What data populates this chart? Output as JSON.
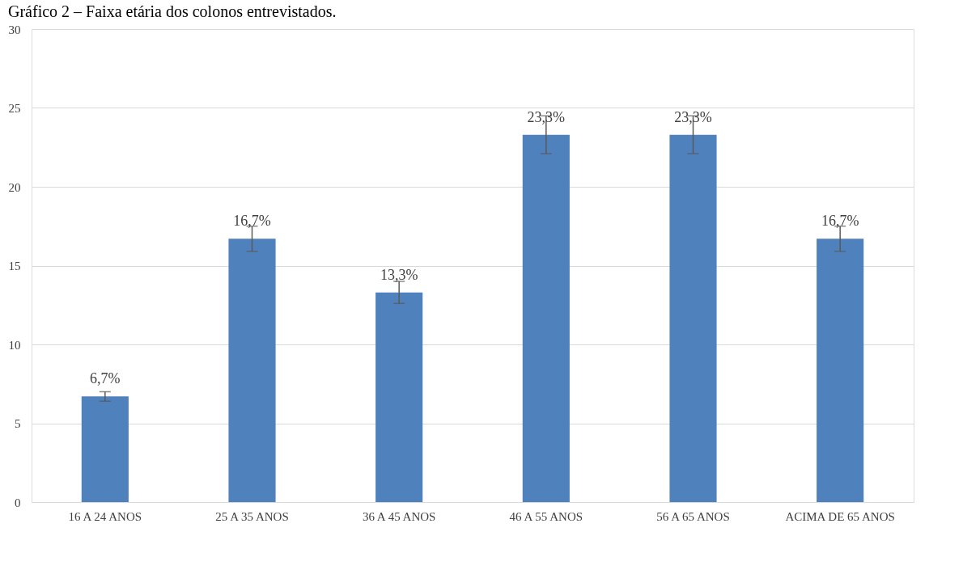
{
  "chart_data": {
    "type": "bar",
    "title": "Gráfico 2 – Faixa etária dos colonos entrevistados.",
    "categories": [
      "16 A 24 ANOS",
      "25 A 35 ANOS",
      "36 A 45 ANOS",
      "46 A 55 ANOS",
      "56 A 65 ANOS",
      "ACIMA DE 65 ANOS"
    ],
    "values": [
      6.7,
      16.7,
      13.3,
      23.3,
      23.3,
      16.7
    ],
    "errors": [
      0.3,
      0.8,
      0.7,
      1.2,
      1.2,
      0.8
    ],
    "value_labels": [
      "6,7%",
      "16,7%",
      "13,3%",
      "23,3%",
      "23,3%",
      "16,7%"
    ],
    "color": "#4f81bd",
    "ylim": [
      0,
      30
    ],
    "yticks": [
      0,
      5,
      10,
      15,
      20,
      25,
      30
    ],
    "grid": "y"
  }
}
